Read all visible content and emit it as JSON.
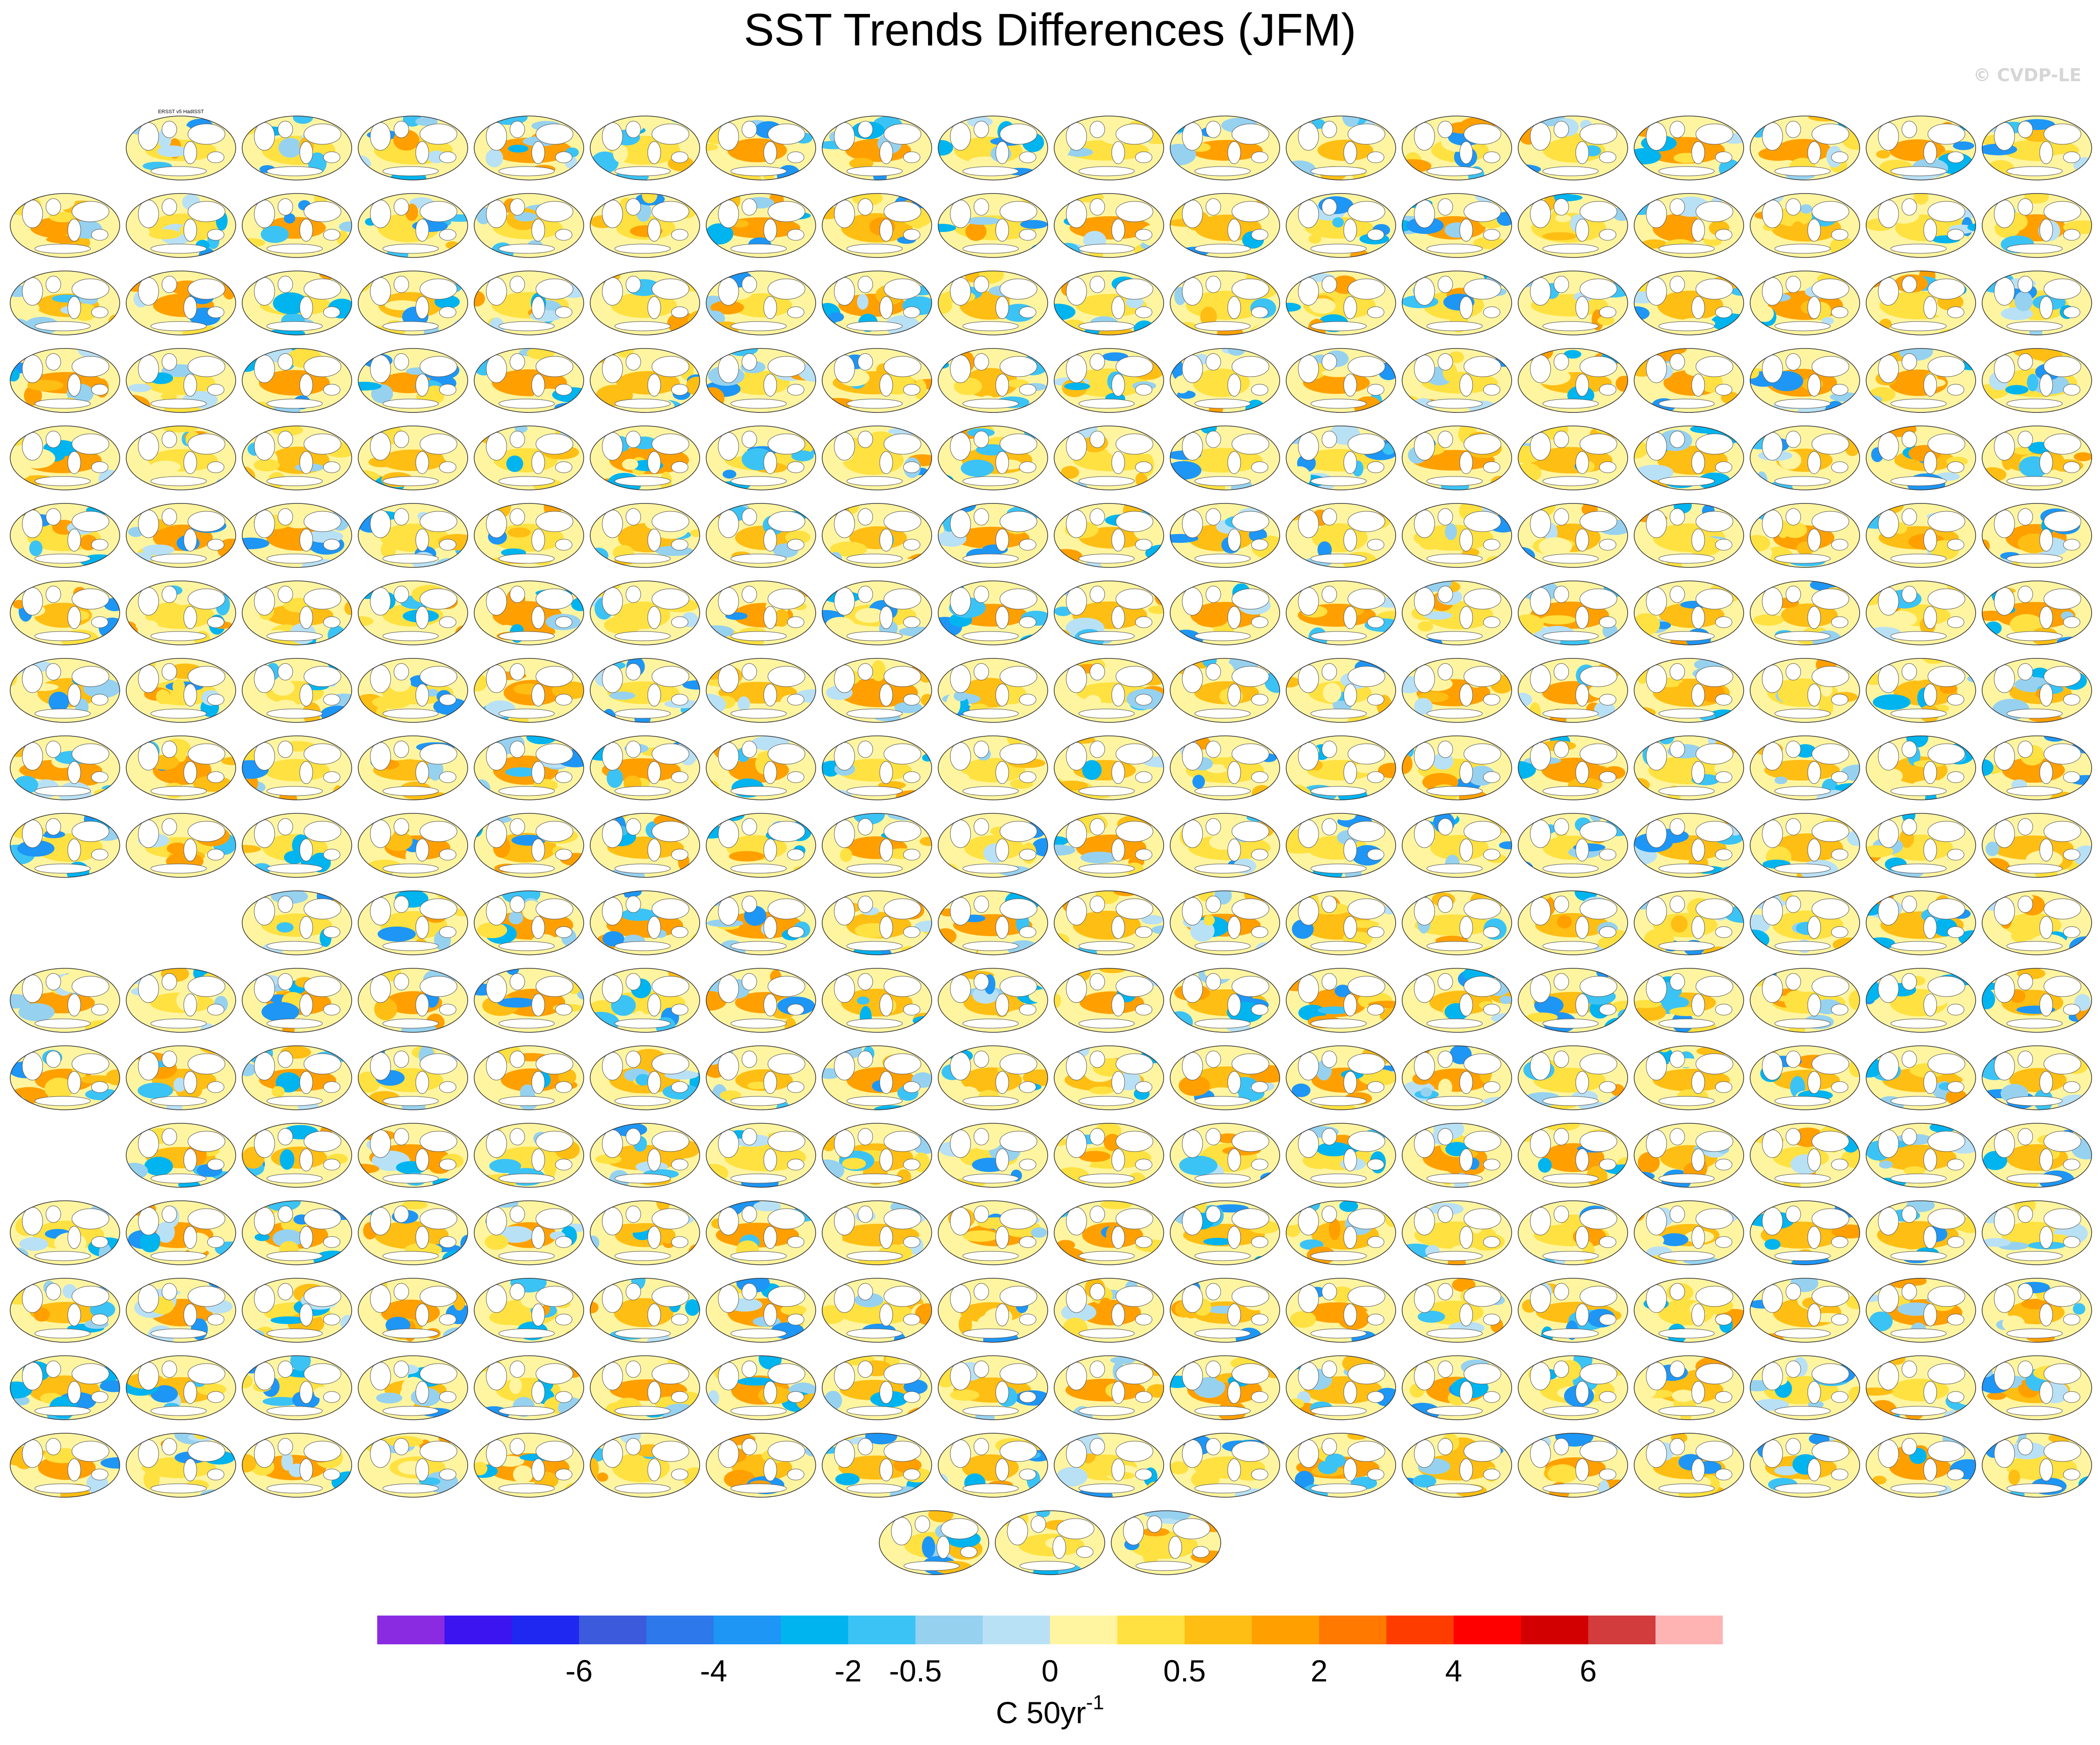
{
  "title": "SST Trends Differences (JFM)",
  "credit": "© CVDP-LE",
  "chart_data": {
    "type": "map-panels",
    "title": "SST Trends Differences (JFM)",
    "panel_label_first": "ERSST v5 HadISST",
    "rows": [
      17,
      18,
      18,
      18,
      18,
      18,
      18,
      18,
      18,
      18,
      17,
      18,
      18,
      17,
      18,
      18,
      18,
      18,
      3
    ],
    "row_skip_leading": [
      1,
      0,
      0,
      0,
      0,
      0,
      0,
      0,
      0,
      0,
      1,
      0,
      0,
      1,
      0,
      0,
      0,
      0,
      0
    ],
    "row_missing_after_first": [
      0,
      0,
      0,
      0,
      0,
      0,
      0,
      0,
      0,
      0,
      1,
      0,
      0,
      0,
      0,
      0,
      0,
      0,
      0
    ],
    "colorbar": {
      "levels": [
        "-6",
        "-4",
        "-2",
        "-0.5",
        "0",
        "0.5",
        "2",
        "4",
        "6"
      ],
      "colors": [
        "#8a2be2",
        "#3c14f0",
        "#1e28f0",
        "#3c5adc",
        "#2d78eb",
        "#1e96f5",
        "#00b4f0",
        "#3cc3f5",
        "#96d2f0",
        "#b9e1f5",
        "#fff5a0",
        "#ffe141",
        "#ffbe14",
        "#ffa000",
        "#ff7800",
        "#ff3c00",
        "#ff0000",
        "#d20000",
        "#d23c3c",
        "#ffb4b4"
      ],
      "label": "C 50yr",
      "label_sup": "-1"
    }
  }
}
